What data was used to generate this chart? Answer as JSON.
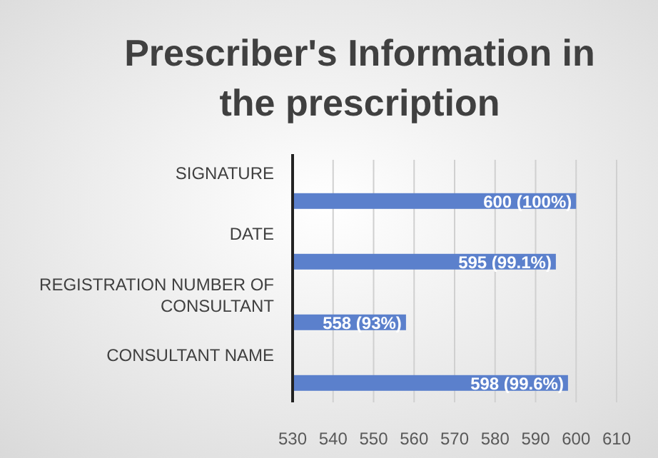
{
  "chart_data": {
    "type": "bar",
    "orientation": "horizontal",
    "title": "Prescriber's Information in the prescription",
    "categories": [
      "SIGNATURE",
      "DATE",
      "REGISTRATION NUMBER OF CONSULTANT",
      "CONSULTANT NAME"
    ],
    "values": [
      600,
      595,
      558,
      598
    ],
    "value_labels": [
      "600 (100%)",
      "595 (99.1%)",
      "558 (93%)",
      "598 (99.6%)"
    ],
    "color": "#5b80cc",
    "xlim": [
      530,
      610
    ],
    "xticks": [
      530,
      540,
      550,
      560,
      570,
      580,
      590,
      600,
      610
    ],
    "grid": "x"
  }
}
